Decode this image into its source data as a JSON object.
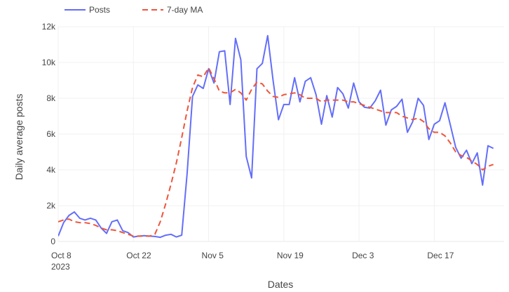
{
  "chart_data": {
    "type": "line",
    "xlabel": "Dates",
    "ylabel": "Daily average posts",
    "x_axis": {
      "range": [
        "2023-10-08",
        "2023-12-30"
      ],
      "ticks": [
        {
          "date": "2023-10-08",
          "label": "Oct 8",
          "sublabel": "2023"
        },
        {
          "date": "2023-10-22",
          "label": "Oct 22",
          "sublabel": ""
        },
        {
          "date": "2023-11-05",
          "label": "Nov 5",
          "sublabel": ""
        },
        {
          "date": "2023-11-19",
          "label": "Nov 19",
          "sublabel": ""
        },
        {
          "date": "2023-12-03",
          "label": "Dec 3",
          "sublabel": ""
        },
        {
          "date": "2023-12-17",
          "label": "Dec 17",
          "sublabel": ""
        }
      ]
    },
    "y_axis": {
      "range": [
        0,
        12000
      ],
      "ticks": [
        {
          "value": 0,
          "label": "0"
        },
        {
          "value": 2000,
          "label": "2k"
        },
        {
          "value": 4000,
          "label": "4k"
        },
        {
          "value": 6000,
          "label": "6k"
        },
        {
          "value": 8000,
          "label": "8k"
        },
        {
          "value": 10000,
          "label": "10k"
        },
        {
          "value": 12000,
          "label": "12k"
        }
      ]
    },
    "grid": true,
    "legend_position": "top-left",
    "series": [
      {
        "name": "Posts",
        "style": "solid",
        "color": "#636efa",
        "points": [
          [
            "2023-10-08",
            300
          ],
          [
            "2023-10-09",
            1050
          ],
          [
            "2023-10-10",
            1450
          ],
          [
            "2023-10-11",
            1650
          ],
          [
            "2023-10-12",
            1300
          ],
          [
            "2023-10-13",
            1200
          ],
          [
            "2023-10-14",
            1300
          ],
          [
            "2023-10-15",
            1200
          ],
          [
            "2023-10-16",
            750
          ],
          [
            "2023-10-17",
            450
          ],
          [
            "2023-10-18",
            1100
          ],
          [
            "2023-10-19",
            1200
          ],
          [
            "2023-10-20",
            600
          ],
          [
            "2023-10-21",
            500
          ],
          [
            "2023-10-22",
            250
          ],
          [
            "2023-10-23",
            300
          ],
          [
            "2023-10-24",
            320
          ],
          [
            "2023-10-25",
            300
          ],
          [
            "2023-10-26",
            280
          ],
          [
            "2023-10-27",
            230
          ],
          [
            "2023-10-28",
            350
          ],
          [
            "2023-10-29",
            400
          ],
          [
            "2023-10-30",
            250
          ],
          [
            "2023-10-31",
            350
          ],
          [
            "2023-11-01",
            3800
          ],
          [
            "2023-11-02",
            8100
          ],
          [
            "2023-11-03",
            8750
          ],
          [
            "2023-11-04",
            8550
          ],
          [
            "2023-11-05",
            9650
          ],
          [
            "2023-11-06",
            8850
          ],
          [
            "2023-11-07",
            10600
          ],
          [
            "2023-11-08",
            10650
          ],
          [
            "2023-11-09",
            7650
          ],
          [
            "2023-11-10",
            11350
          ],
          [
            "2023-11-11",
            10150
          ],
          [
            "2023-11-12",
            4750
          ],
          [
            "2023-11-13",
            3550
          ],
          [
            "2023-11-14",
            9650
          ],
          [
            "2023-11-15",
            9950
          ],
          [
            "2023-11-16",
            11500
          ],
          [
            "2023-11-17",
            9000
          ],
          [
            "2023-11-18",
            6800
          ],
          [
            "2023-11-19",
            7650
          ],
          [
            "2023-11-20",
            7650
          ],
          [
            "2023-11-21",
            9150
          ],
          [
            "2023-11-22",
            7800
          ],
          [
            "2023-11-23",
            8950
          ],
          [
            "2023-11-24",
            9150
          ],
          [
            "2023-11-25",
            8200
          ],
          [
            "2023-11-26",
            6550
          ],
          [
            "2023-11-27",
            8150
          ],
          [
            "2023-11-28",
            6950
          ],
          [
            "2023-11-29",
            8600
          ],
          [
            "2023-11-30",
            8250
          ],
          [
            "2023-12-01",
            7450
          ],
          [
            "2023-12-02",
            8850
          ],
          [
            "2023-12-03",
            7800
          ],
          [
            "2023-12-04",
            7500
          ],
          [
            "2023-12-05",
            7450
          ],
          [
            "2023-12-06",
            7850
          ],
          [
            "2023-12-07",
            8450
          ],
          [
            "2023-12-08",
            6500
          ],
          [
            "2023-12-09",
            7350
          ],
          [
            "2023-12-10",
            7550
          ],
          [
            "2023-12-11",
            7950
          ],
          [
            "2023-12-12",
            6100
          ],
          [
            "2023-12-13",
            6700
          ],
          [
            "2023-12-14",
            8000
          ],
          [
            "2023-12-15",
            7600
          ],
          [
            "2023-12-16",
            5700
          ],
          [
            "2023-12-17",
            6550
          ],
          [
            "2023-12-18",
            6750
          ],
          [
            "2023-12-19",
            7750
          ],
          [
            "2023-12-20",
            6500
          ],
          [
            "2023-12-21",
            5250
          ],
          [
            "2023-12-22",
            4650
          ],
          [
            "2023-12-23",
            5100
          ],
          [
            "2023-12-24",
            4350
          ],
          [
            "2023-12-25",
            4950
          ],
          [
            "2023-12-26",
            3150
          ],
          [
            "2023-12-27",
            5350
          ],
          [
            "2023-12-28",
            5200
          ]
        ]
      },
      {
        "name": "7-day MA",
        "style": "dashed",
        "color": "#ef553b",
        "points": [
          [
            "2023-10-08",
            1100
          ],
          [
            "2023-10-09",
            1200
          ],
          [
            "2023-10-10",
            1250
          ],
          [
            "2023-10-11",
            1100
          ],
          [
            "2023-10-12",
            1050
          ],
          [
            "2023-10-13",
            1050
          ],
          [
            "2023-10-14",
            1000
          ],
          [
            "2023-10-15",
            900
          ],
          [
            "2023-10-16",
            750
          ],
          [
            "2023-10-17",
            650
          ],
          [
            "2023-10-18",
            650
          ],
          [
            "2023-10-19",
            600
          ],
          [
            "2023-10-20",
            500
          ],
          [
            "2023-10-21",
            400
          ],
          [
            "2023-10-22",
            300
          ],
          [
            "2023-10-23",
            300
          ],
          [
            "2023-10-24",
            300
          ],
          [
            "2023-10-25",
            300
          ],
          [
            "2023-10-26",
            400
          ],
          [
            "2023-10-27",
            1100
          ],
          [
            "2023-10-28",
            2100
          ],
          [
            "2023-10-29",
            3200
          ],
          [
            "2023-10-30",
            4400
          ],
          [
            "2023-10-31",
            5800
          ],
          [
            "2023-11-01",
            7300
          ],
          [
            "2023-11-02",
            8600
          ],
          [
            "2023-11-03",
            9300
          ],
          [
            "2023-11-04",
            9200
          ],
          [
            "2023-11-05",
            9700
          ],
          [
            "2023-11-06",
            9100
          ],
          [
            "2023-11-07",
            8400
          ],
          [
            "2023-11-08",
            8300
          ],
          [
            "2023-11-09",
            8300
          ],
          [
            "2023-11-10",
            8500
          ],
          [
            "2023-11-11",
            8300
          ],
          [
            "2023-11-12",
            7900
          ],
          [
            "2023-11-13",
            8500
          ],
          [
            "2023-11-14",
            8900
          ],
          [
            "2023-11-15",
            8800
          ],
          [
            "2023-11-16",
            8400
          ],
          [
            "2023-11-17",
            8100
          ],
          [
            "2023-11-18",
            8050
          ],
          [
            "2023-11-19",
            8200
          ],
          [
            "2023-11-20",
            8250
          ],
          [
            "2023-11-21",
            8300
          ],
          [
            "2023-11-22",
            8200
          ],
          [
            "2023-11-23",
            8000
          ],
          [
            "2023-11-24",
            8000
          ],
          [
            "2023-11-25",
            8000
          ],
          [
            "2023-11-26",
            7800
          ],
          [
            "2023-11-27",
            7900
          ],
          [
            "2023-11-28",
            7900
          ],
          [
            "2023-11-29",
            7900
          ],
          [
            "2023-11-30",
            7900
          ],
          [
            "2023-12-01",
            7800
          ],
          [
            "2023-12-02",
            7800
          ],
          [
            "2023-12-03",
            7700
          ],
          [
            "2023-12-04",
            7600
          ],
          [
            "2023-12-05",
            7500
          ],
          [
            "2023-12-06",
            7400
          ],
          [
            "2023-12-07",
            7300
          ],
          [
            "2023-12-08",
            7200
          ],
          [
            "2023-12-09",
            7200
          ],
          [
            "2023-12-10",
            7200
          ],
          [
            "2023-12-11",
            7000
          ],
          [
            "2023-12-12",
            6900
          ],
          [
            "2023-12-13",
            6800
          ],
          [
            "2023-12-14",
            6900
          ],
          [
            "2023-12-15",
            6700
          ],
          [
            "2023-12-16",
            6300
          ],
          [
            "2023-12-17",
            6100
          ],
          [
            "2023-12-18",
            6100
          ],
          [
            "2023-12-19",
            5900
          ],
          [
            "2023-12-20",
            5500
          ],
          [
            "2023-12-21",
            5000
          ],
          [
            "2023-12-22",
            4800
          ],
          [
            "2023-12-23",
            4700
          ],
          [
            "2023-12-24",
            4500
          ],
          [
            "2023-12-25",
            4300
          ],
          [
            "2023-12-26",
            4000
          ],
          [
            "2023-12-27",
            4200
          ],
          [
            "2023-12-28",
            4300
          ]
        ]
      }
    ]
  }
}
